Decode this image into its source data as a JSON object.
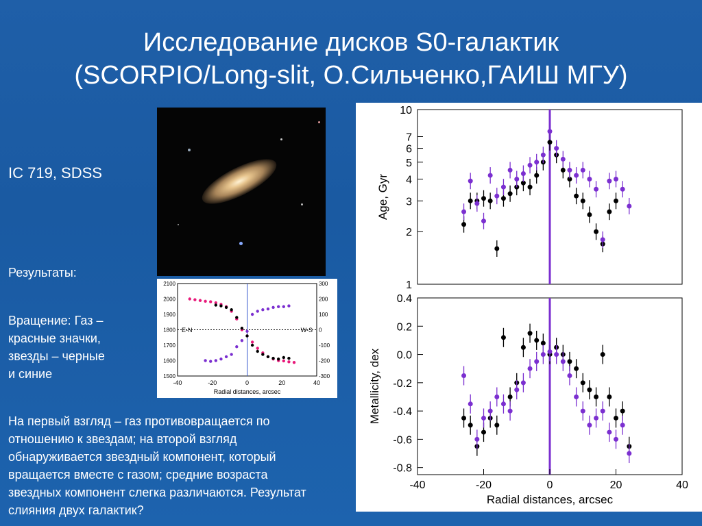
{
  "slide": {
    "title_line1": "Исследование дисков S0-галактик",
    "title_line2": "(SCORPIO/Long-slit, О.Сильченко,ГАИШ МГУ)",
    "object_label": "IC 719, SDSS",
    "results_label": "Результаты:",
    "rotation_text": [
      "Вращение: Газ –",
      "красные значки,",
      "звезды – черные",
      "и синие"
    ],
    "conclusion_text": [
      "На первый взгляд – газ противовращается по",
      "отношению к звездам; на второй взгляд",
      "обнаруживается звездный компонент, который",
      "вращается вместе с газом; средние возраста",
      "звездных компонент слегка различаются.  Результат",
      "слияния двух галактик?"
    ]
  },
  "chart_data": [
    {
      "type": "scatter",
      "title": "",
      "xlabel": "Radial distances, arcsec",
      "ylabel_left": "",
      "ylabel_right": "",
      "xlim": [
        -40,
        40
      ],
      "ylim_left": [
        1500,
        2100
      ],
      "ylim_right": [
        -300,
        300
      ],
      "x_ticks": [
        "-40",
        "-20",
        "0",
        "20",
        "40"
      ],
      "y_ticks_left": [
        "1500",
        "1600",
        "1700",
        "1800",
        "1900",
        "2000",
        "2100"
      ],
      "y_ticks_right": [
        "-300",
        "-200",
        "-100",
        "0",
        "100",
        "200",
        "300"
      ],
      "annotations": [
        "E-N",
        "W-S"
      ],
      "colors": {
        "gas": "#e8197a",
        "stars_black": "#000000",
        "stars_purple": "#7b2fd0"
      },
      "series": [
        {
          "color": "#e8197a",
          "x": [
            -33,
            -30,
            -27,
            -24,
            -21,
            -18,
            -15,
            -12,
            -9,
            -6,
            -3,
            0,
            3,
            6,
            9,
            12,
            15,
            18,
            21,
            24,
            27
          ],
          "values": [
            2000,
            1995,
            1990,
            1985,
            1982,
            1975,
            1965,
            1950,
            1920,
            1870,
            1800,
            1760,
            1720,
            1680,
            1650,
            1625,
            1610,
            1600,
            1598,
            1592,
            1588
          ]
        },
        {
          "color": "#000000",
          "x": [
            -18,
            -15,
            -12,
            -9,
            -6,
            -3,
            0,
            3,
            6,
            9,
            12,
            15,
            18,
            21,
            24
          ],
          "values": [
            1960,
            1955,
            1945,
            1930,
            1880,
            1810,
            1760,
            1700,
            1660,
            1640,
            1625,
            1615,
            1610,
            1620,
            1615
          ]
        },
        {
          "color": "#7b2fd0",
          "x": [
            -24,
            -21,
            -18,
            -15,
            -12,
            -9,
            -6,
            -3,
            0,
            3,
            6,
            9,
            12,
            15,
            18,
            21,
            24
          ],
          "values": [
            1600,
            1595,
            1600,
            1610,
            1625,
            1640,
            1690,
            1730,
            1790,
            1900,
            1920,
            1930,
            1935,
            1945,
            1950,
            1950,
            1955
          ]
        }
      ]
    },
    {
      "type": "scatter",
      "title": "",
      "xlabel": "",
      "ylabel": "Age, Gyr",
      "yscale": "log",
      "xlim": [
        -40,
        40
      ],
      "ylim": [
        1,
        10
      ],
      "y_ticks": [
        "1",
        "2",
        "3",
        "4",
        "5",
        "6",
        "7",
        "10"
      ],
      "colors": {
        "black": "#000000",
        "purple": "#7b2fd0",
        "center_line": "#7b2fd0"
      },
      "series": [
        {
          "color": "#000000",
          "x": [
            -26,
            -24,
            -22,
            -20,
            -18,
            -16,
            -14,
            -12,
            -10,
            -8,
            -6,
            -4,
            -2,
            0,
            2,
            4,
            6,
            8,
            10,
            12,
            14,
            16,
            18,
            20
          ],
          "values": [
            2.2,
            3.0,
            3.0,
            3.1,
            3.0,
            1.6,
            3.1,
            3.3,
            3.6,
            3.8,
            3.6,
            4.2,
            5.0,
            6.5,
            5.5,
            4.5,
            4.0,
            3.2,
            3.0,
            2.5,
            2.0,
            1.7,
            2.6,
            3.0
          ]
        },
        {
          "color": "#7b2fd0",
          "x": [
            -26,
            -24,
            -22,
            -20,
            -18,
            -16,
            -14,
            -12,
            -10,
            -8,
            -6,
            -4,
            -2,
            0,
            2,
            4,
            6,
            8,
            10,
            12,
            14,
            16,
            18,
            20,
            22,
            24
          ],
          "values": [
            2.6,
            3.9,
            2.9,
            2.3,
            4.2,
            3.2,
            3.6,
            4.5,
            4.0,
            4.3,
            4.8,
            5.0,
            5.5,
            7.5,
            6.0,
            5.2,
            4.5,
            4.2,
            4.5,
            4.0,
            3.5,
            1.8,
            3.9,
            4.0,
            3.5,
            2.8
          ]
        }
      ]
    },
    {
      "type": "scatter",
      "title": "",
      "xlabel": "Radial distances, arcsec",
      "ylabel": "Metallicity, dex",
      "xlim": [
        -40,
        40
      ],
      "ylim": [
        -0.85,
        0.4
      ],
      "x_ticks": [
        "-40",
        "-20",
        "0",
        "20",
        "40"
      ],
      "y_ticks": [
        "0.4",
        "0.2",
        "0.0",
        "-0.2",
        "-0.4",
        "-0.6",
        "-0.8"
      ],
      "colors": {
        "black": "#000000",
        "purple": "#7b2fd0",
        "center_line": "#7b2fd0"
      },
      "series": [
        {
          "color": "#000000",
          "x": [
            -26,
            -24,
            -22,
            -20,
            -18,
            -16,
            -14,
            -12,
            -10,
            -8,
            -6,
            -4,
            -2,
            0,
            2,
            4,
            6,
            8,
            10,
            12,
            14,
            16,
            18,
            20,
            22,
            24
          ],
          "values": [
            -0.45,
            -0.5,
            -0.65,
            -0.55,
            -0.45,
            -0.5,
            0.12,
            -0.3,
            -0.2,
            0.05,
            0.15,
            0.1,
            0.08,
            0.0,
            0.05,
            0.0,
            -0.05,
            -0.1,
            -0.2,
            -0.25,
            -0.3,
            0.0,
            -0.3,
            -0.45,
            -0.4,
            -0.65
          ]
        },
        {
          "color": "#7b2fd0",
          "x": [
            -26,
            -24,
            -22,
            -20,
            -18,
            -16,
            -14,
            -12,
            -10,
            -8,
            -6,
            -4,
            -2,
            0,
            2,
            4,
            6,
            8,
            10,
            12,
            14,
            16,
            18,
            20,
            22,
            24
          ],
          "values": [
            -0.15,
            -0.35,
            -0.6,
            -0.45,
            -0.4,
            -0.3,
            -0.35,
            -0.4,
            -0.25,
            -0.2,
            -0.1,
            -0.05,
            0.0,
            0.02,
            0.0,
            -0.05,
            -0.15,
            -0.3,
            -0.4,
            -0.5,
            -0.45,
            -0.4,
            -0.55,
            -0.6,
            -0.5,
            -0.7
          ]
        }
      ]
    }
  ]
}
